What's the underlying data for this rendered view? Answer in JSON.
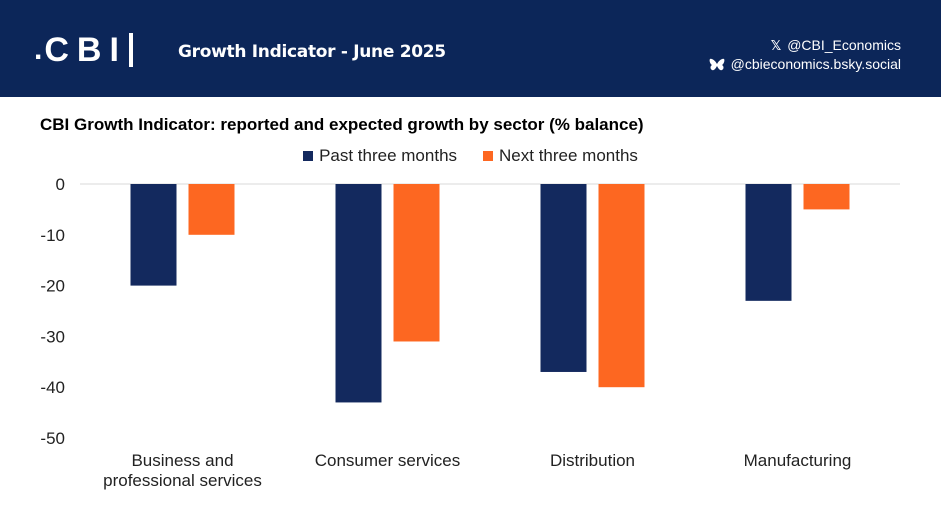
{
  "header": {
    "title": "Growth Indicator - June 2025",
    "logo_text": "CBI",
    "x_handle": "@CBI_Economics",
    "bsky_handle": "@cbieconomics.bsky.social"
  },
  "colors": {
    "header_bg": "#0c2659",
    "past": "#13295e",
    "next": "#fd6721"
  },
  "chart_data": {
    "type": "bar",
    "title": "CBI Growth Indicator: reported and expected growth by sector (% balance)",
    "categories": [
      [
        "Business and",
        "professional services"
      ],
      [
        "Consumer services"
      ],
      [
        "Distribution"
      ],
      [
        "Manufacturing"
      ]
    ],
    "series": [
      {
        "name": "Past three months",
        "values": [
          -20,
          -43,
          -37,
          -23
        ]
      },
      {
        "name": "Next three months",
        "values": [
          -10,
          -31,
          -40,
          -5
        ]
      }
    ],
    "ylim": [
      -50,
      0
    ],
    "yticks": [
      0,
      -10,
      -20,
      -30,
      -40,
      -50
    ],
    "legend_position": "top-center",
    "xlabel": "",
    "ylabel": ""
  }
}
